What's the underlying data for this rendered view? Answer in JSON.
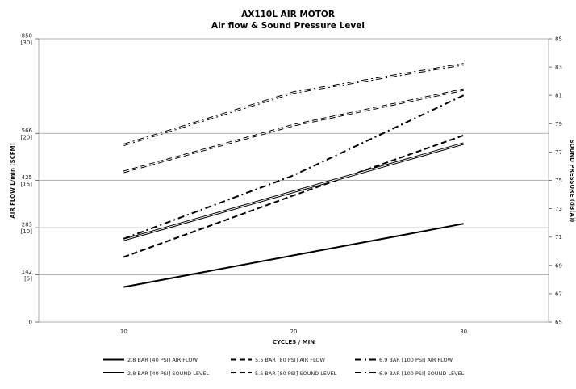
{
  "chart_data": {
    "type": "line",
    "title": "AX110L AIR MOTOR",
    "subtitle": "Air flow & Sound Pressure Level",
    "xlabel": "CYCLES / MIN",
    "ylabel": "AIR FLOW L/min [SCFM]",
    "y2label": "SOUND PRESSURE (dB(A))",
    "xlim": [
      5,
      35
    ],
    "ylim": [
      0,
      850
    ],
    "y2lim": [
      65,
      85
    ],
    "x_ticks": [
      "10",
      "20",
      "30"
    ],
    "y_ticks": [
      {
        "value": 0,
        "label": "0",
        "sub": ""
      },
      {
        "value": 142,
        "label": "142",
        "sub": "[5]"
      },
      {
        "value": 283,
        "label": "283",
        "sub": "[10]"
      },
      {
        "value": 425,
        "label": "425",
        "sub": "[15]"
      },
      {
        "value": 566,
        "label": "566",
        "sub": "[20]"
      },
      {
        "value": 850,
        "label": "850",
        "sub": "[30]"
      }
    ],
    "y2_ticks": [
      "65",
      "67",
      "69",
      "71",
      "73",
      "75",
      "77",
      "79",
      "81",
      "83",
      "85"
    ],
    "gridlines_y": [
      142,
      283,
      425,
      566
    ],
    "grid": true,
    "legend_position": "bottom",
    "x": [
      10,
      20,
      30
    ],
    "series": [
      {
        "name": "2.8 BAR [40 PSI] AIR FLOW",
        "axis": "left",
        "style": "solid",
        "values": [
          105,
          200,
          295
        ]
      },
      {
        "name": "5.5 BAR [80 PSI] AIR FLOW",
        "axis": "left",
        "style": "dash",
        "values": [
          195,
          380,
          560
        ]
      },
      {
        "name": "6.9 BAR [100 PSI] AIR FLOW",
        "axis": "left",
        "style": "dashdot",
        "values": [
          250,
          440,
          680
        ]
      },
      {
        "name": "2.8 BAR [40 PSI] SOUND LEVEL",
        "axis": "right",
        "style": "double",
        "values": [
          70.8,
          74.2,
          77.6
        ]
      },
      {
        "name": "5.5 BAR [80 PSI] SOUND LEVEL",
        "axis": "right",
        "style": "double-dash",
        "values": [
          75.6,
          78.9,
          81.4
        ]
      },
      {
        "name": "6.9 BAR [100 PSI] SOUND LEVEL",
        "axis": "right",
        "style": "double-dashdot",
        "values": [
          77.5,
          81.2,
          83.2
        ]
      }
    ]
  }
}
